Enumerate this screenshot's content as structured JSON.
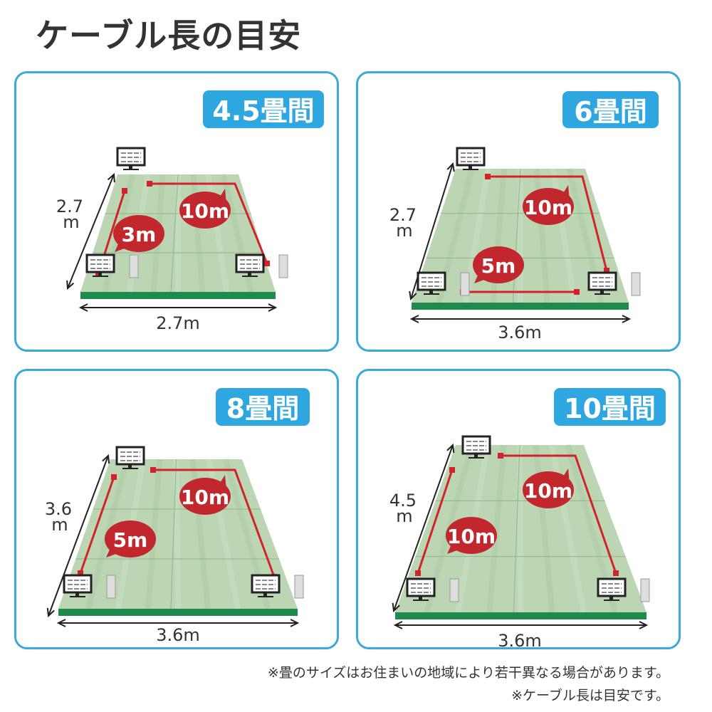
{
  "title": "ケーブル長の目安",
  "colors": {
    "panel_border": "#3aa9dc",
    "badge": "#2ea7e0",
    "cable": "#d2232a",
    "bubble": "#c1272d",
    "floor": "#bcd6b4",
    "floor_edge": "#1e8b4c"
  },
  "panels": [
    {
      "room": "4.5畳間",
      "depth": [
        "2.7",
        "m"
      ],
      "width": "2.7m",
      "cables": [
        "3m",
        "10m"
      ]
    },
    {
      "room": "6畳間",
      "depth": [
        "2.7",
        "m"
      ],
      "width": "3.6m",
      "cables": [
        "10m",
        "5m"
      ]
    },
    {
      "room": "8畳間",
      "depth": [
        "3.6",
        "m"
      ],
      "width": "3.6m",
      "cables": [
        "10m",
        "5m"
      ]
    },
    {
      "room": "10畳間",
      "depth": [
        "4.5",
        "m"
      ],
      "width": "3.6m",
      "cables": [
        "10m",
        "10m"
      ]
    }
  ],
  "notes": [
    "※畳のサイズはお住まいの地域により若干異なる場合があります。",
    "※ケーブル長は目安です。"
  ]
}
